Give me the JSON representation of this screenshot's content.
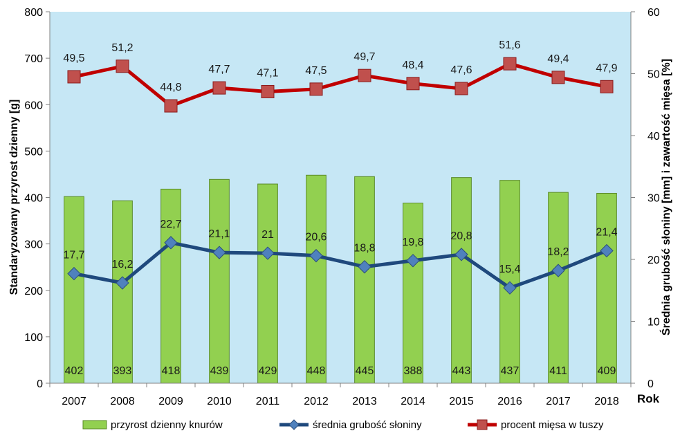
{
  "chart_data": {
    "type": "bar+line",
    "categories": [
      "2007",
      "2008",
      "2009",
      "2010",
      "2011",
      "2012",
      "2013",
      "2014",
      "2015",
      "2016",
      "2017",
      "2018"
    ],
    "xlabel": "Rok",
    "ylabel_left": "Standaryzowany przyrost dzienny [g]",
    "ylabel_right": "Średnia grubość słoniny [mm] i zawartość mięsa [%]",
    "ylim_left": [
      0,
      800
    ],
    "yticks_left": [
      0,
      100,
      200,
      300,
      400,
      500,
      600,
      700,
      800
    ],
    "ylim_right": [
      0,
      60
    ],
    "yticks_right": [
      0,
      10,
      20,
      30,
      40,
      50,
      60
    ],
    "grid": false,
    "legend_position": "bottom",
    "series": [
      {
        "name": "przyrost dzienny knurów",
        "type": "bar",
        "axis": "left",
        "color": "#92d050",
        "values": [
          402,
          393,
          418,
          439,
          429,
          448,
          445,
          388,
          443,
          437,
          411,
          409
        ],
        "labels": [
          "402",
          "393",
          "418",
          "439",
          "429",
          "448",
          "445",
          "388",
          "443",
          "437",
          "411",
          "409"
        ]
      },
      {
        "name": "średnia grubość słoniny",
        "type": "line",
        "axis": "right",
        "color": "#1f497d",
        "marker": "diamond",
        "values": [
          17.7,
          16.2,
          22.7,
          21.1,
          21.0,
          20.6,
          18.8,
          19.8,
          20.8,
          15.4,
          18.2,
          21.4
        ],
        "labels": [
          "17,7",
          "16,2",
          "22,7",
          "21,1",
          "21",
          "20,6",
          "18,8",
          "19,8",
          "20,8",
          "15,4",
          "18,2",
          "21,4"
        ]
      },
      {
        "name": "procent mięsa w tuszy",
        "type": "line",
        "axis": "right",
        "color": "#c00000",
        "marker": "square",
        "values": [
          49.5,
          51.2,
          44.8,
          47.7,
          47.1,
          47.5,
          49.7,
          48.4,
          47.6,
          51.6,
          49.4,
          47.9
        ],
        "labels": [
          "49,5",
          "51,2",
          "44,8",
          "47,7",
          "47,1",
          "47,5",
          "49,7",
          "48,4",
          "47,6",
          "51,6",
          "49,4",
          "47,9"
        ]
      }
    ]
  },
  "colors": {
    "plot_background": "#c6e7f5",
    "bar_fill": "#92d050",
    "bar_stroke": "#5a8a28",
    "thickness_line": "#1f497d",
    "thickness_marker": "#4f81bd",
    "meat_line": "#c00000",
    "meat_marker": "#c0504d"
  }
}
